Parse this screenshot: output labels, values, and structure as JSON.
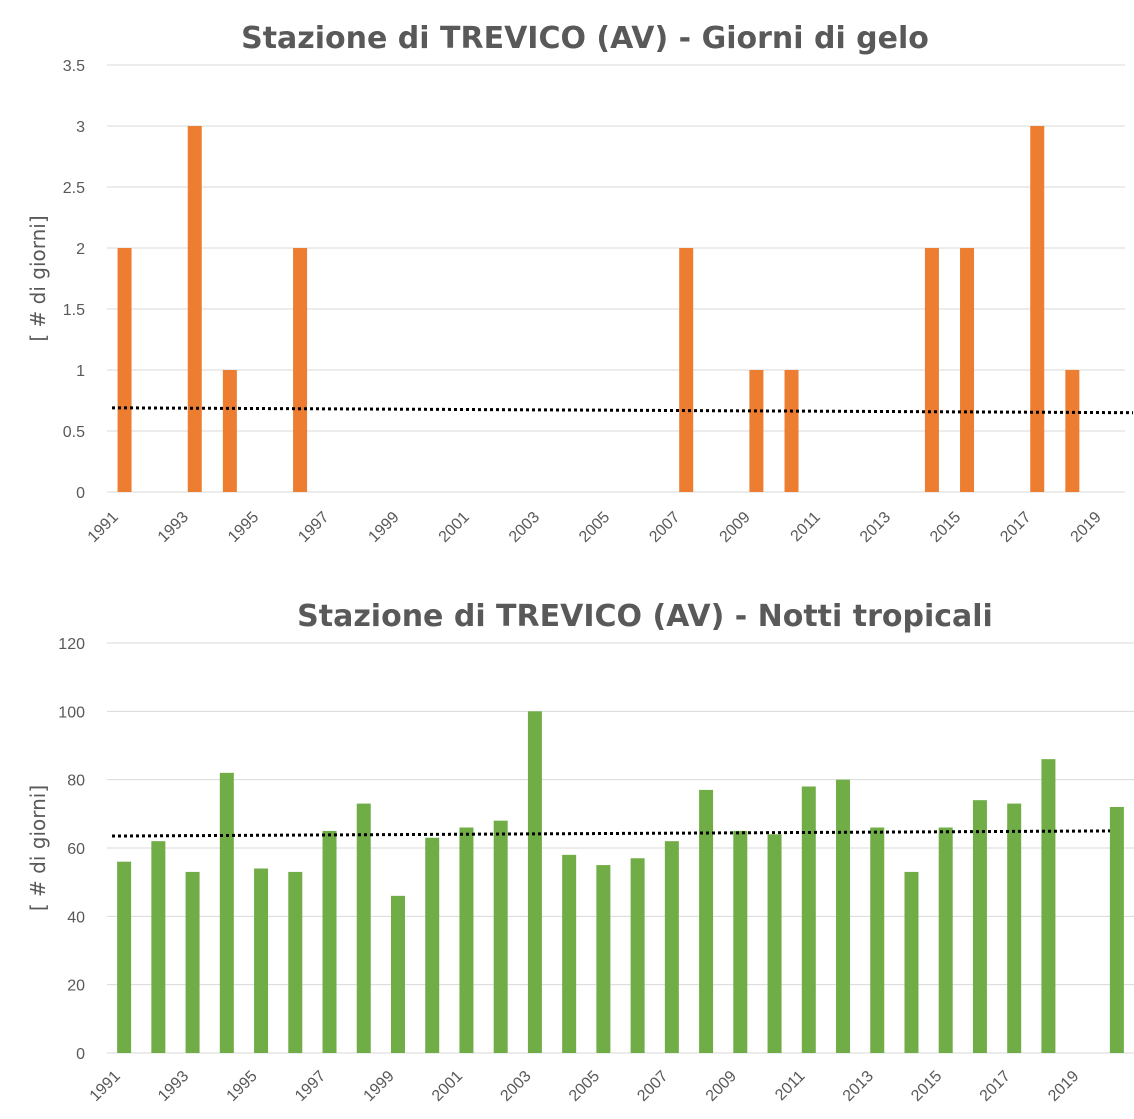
{
  "chart_data": [
    {
      "type": "bar",
      "title": "Stazione di TREVICO (AV) - Giorni di gelo",
      "ylabel": "[ # di giorni]",
      "xlabel": "",
      "ylim": [
        0,
        3.5
      ],
      "yticks": [
        "0",
        "0.5",
        "1",
        "1.5",
        "2",
        "2.5",
        "3",
        "3.5"
      ],
      "categories": [
        "1991",
        "1992",
        "1993",
        "1994",
        "1995",
        "1996",
        "1997",
        "1998",
        "1999",
        "2000",
        "2001",
        "2002",
        "2003",
        "2004",
        "2005",
        "2006",
        "2007",
        "2008",
        "2009",
        "2010",
        "2011",
        "2012",
        "2013",
        "2014",
        "2015",
        "2016",
        "2017",
        "2018",
        "2019"
      ],
      "xtick_labels": [
        "1991",
        "1993",
        "1995",
        "1997",
        "1999",
        "2001",
        "2003",
        "2005",
        "2007",
        "2009",
        "2011",
        "2013",
        "2015",
        "2017",
        "2019"
      ],
      "values": [
        2,
        0,
        3,
        1,
        0,
        2,
        0,
        0,
        0,
        0,
        0,
        0,
        0,
        0,
        0,
        0,
        2,
        0,
        1,
        1,
        0,
        0,
        0,
        2,
        2,
        0,
        3,
        1,
        0
      ],
      "trendline": {
        "type": "linear",
        "start": 0.69,
        "end": 0.65
      },
      "color": "#ED7D31",
      "grid": true,
      "legend": "none"
    },
    {
      "type": "bar",
      "title": "Stazione di TREVICO (AV) - Notti tropicali",
      "ylabel": "[ # di giorni]",
      "xlabel": "",
      "ylim": [
        0,
        120
      ],
      "yticks": [
        "0",
        "20",
        "40",
        "60",
        "80",
        "100",
        "120"
      ],
      "categories": [
        "1991",
        "1992",
        "1993",
        "1994",
        "1995",
        "1996",
        "1997",
        "1998",
        "1999",
        "2000",
        "2001",
        "2002",
        "2003",
        "2004",
        "2005",
        "2006",
        "2007",
        "2008",
        "2009",
        "2010",
        "2011",
        "2012",
        "2013",
        "2014",
        "2015",
        "2016",
        "2017",
        "2018",
        "2019",
        "2020"
      ],
      "xtick_labels": [
        "1991",
        "1993",
        "1995",
        "1997",
        "1999",
        "2001",
        "2003",
        "2005",
        "2007",
        "2009",
        "2011",
        "2013",
        "2015",
        "2017",
        "2019"
      ],
      "values": [
        56,
        62,
        53,
        82,
        54,
        53,
        65,
        73,
        46,
        63,
        66,
        68,
        100,
        58,
        55,
        57,
        62,
        77,
        65,
        64,
        78,
        80,
        66,
        53,
        66,
        74,
        73,
        86,
        0,
        72
      ],
      "trendline": {
        "type": "linear",
        "start": 63.5,
        "end": 65.0
      },
      "color": "#70AD47",
      "grid": true,
      "legend": "none"
    }
  ]
}
